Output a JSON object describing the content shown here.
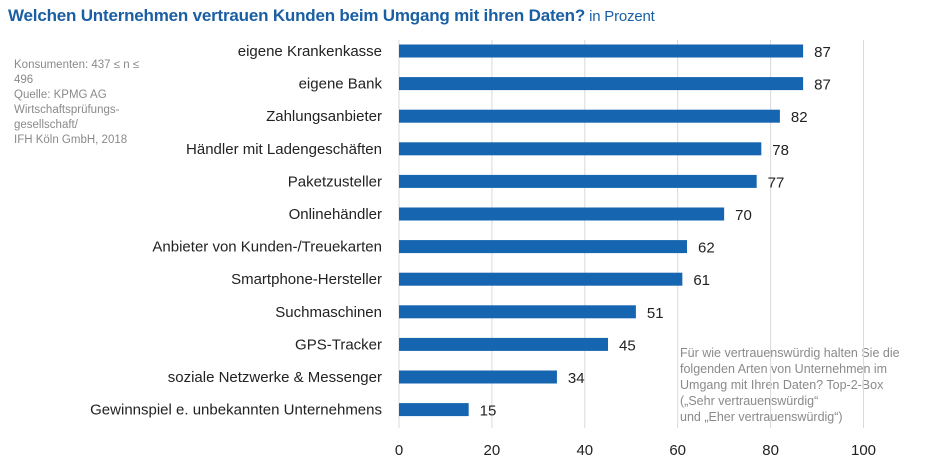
{
  "header": {
    "title": "Welchen Unternehmen vertrauen Kunden beim Umgang mit ihren Daten?",
    "subtitle": "in Prozent"
  },
  "meta": {
    "lines": [
      "Konsumenten: 437 ≤ n ≤ 496",
      "Quelle: KPMG AG",
      "Wirtschaftsprüfungs-",
      "gesellschaft/",
      "IFH Köln GmbH, 2018"
    ]
  },
  "note": {
    "lines": [
      "Für wie vertrauenswürdig halten Sie die",
      "folgenden Arten von Unternehmen im",
      "Umgang mit Ihren Daten? Top-2-Box",
      "(„Sehr vertrauenswürdig“",
      "und „Eher vertrauenswürdig“)"
    ]
  },
  "colors": {
    "bar": "#1565b0",
    "title": "#1a5fa3",
    "grid": "#d9d9d9"
  },
  "chart_data": {
    "type": "bar",
    "orientation": "horizontal",
    "title": "Welchen Unternehmen vertrauen Kunden beim Umgang mit ihren Daten?",
    "subtitle": "in Prozent",
    "xlabel": "",
    "ylabel": "",
    "xlim": [
      0,
      100
    ],
    "xticks": [
      0,
      20,
      40,
      60,
      80,
      100
    ],
    "grid": true,
    "categories": [
      "eigene Krankenkasse",
      "eigene Bank",
      "Zahlungsanbieter",
      "Händler mit Ladengeschäften",
      "Paketzusteller",
      "Onlinehändler",
      "Anbieter von Kunden-/Treuekarten",
      "Smartphone-Hersteller",
      "Suchmaschinen",
      "GPS-Tracker",
      "soziale Netzwerke & Messenger",
      "Gewinnspiel e. unbekannten Unternehmens"
    ],
    "values": [
      87,
      87,
      82,
      78,
      77,
      70,
      62,
      61,
      51,
      45,
      34,
      15
    ]
  }
}
